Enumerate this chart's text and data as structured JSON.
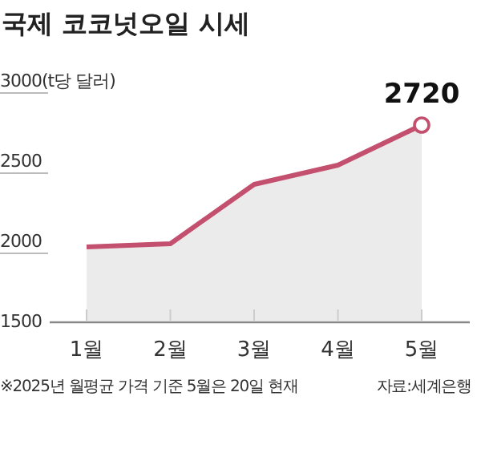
{
  "chart_data": {
    "type": "area",
    "title": "국제 코코넛오일 시세",
    "categories": [
      "1월",
      "2월",
      "3월",
      "4월",
      "5월"
    ],
    "values": [
      1960,
      1980,
      2350,
      2470,
      2720
    ],
    "color": "#c4506f",
    "ylim": [
      1500,
      3000
    ],
    "yticks": [
      {
        "value": 3000,
        "label": "3000(t당 달러)"
      },
      2500,
      2000,
      1500
    ],
    "annotations": [
      {
        "text": "2720",
        "x": "5월",
        "y": 2720
      },
      "※2025년 월평균 가격 기준 5월은 20일 현재",
      "자료:세계은행"
    ]
  }
}
